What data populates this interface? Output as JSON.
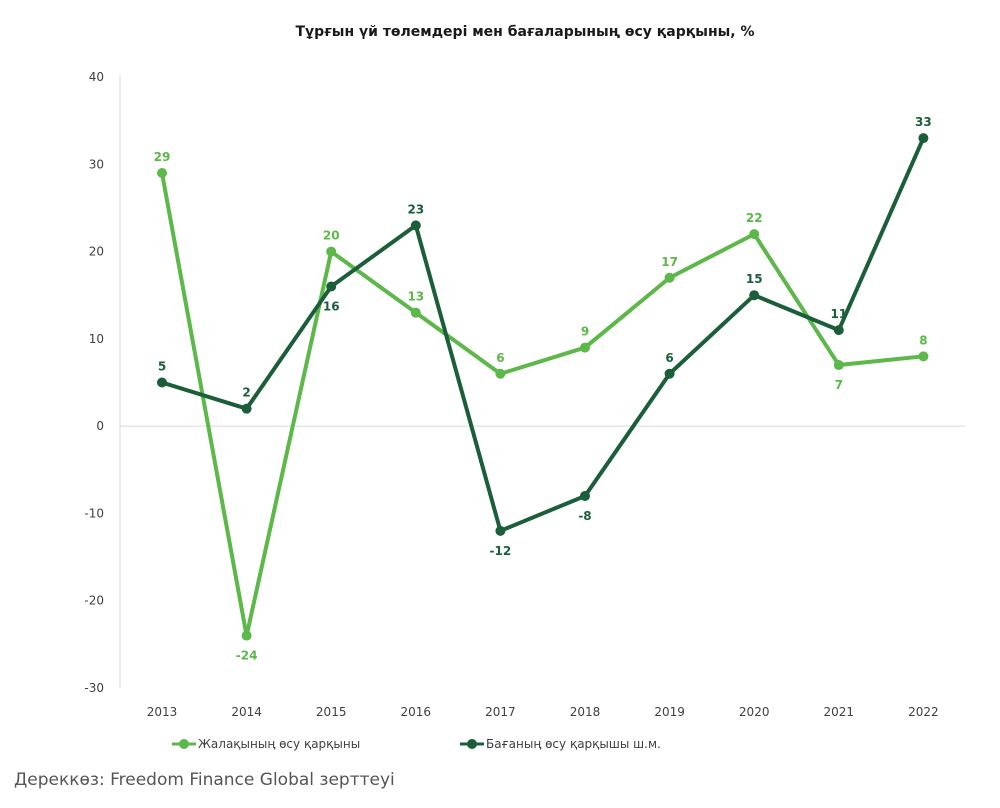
{
  "chart_data": {
    "type": "line",
    "title": "Тұрғын үй төлемдері мен бағаларының өсу қарқыны, %",
    "categories": [
      "2013",
      "2014",
      "2015",
      "2016",
      "2017",
      "2018",
      "2019",
      "2020",
      "2021",
      "2022"
    ],
    "series": [
      {
        "name": "Жалақының өсу қарқыны",
        "color": "#5cb848",
        "values": [
          29,
          -24,
          20,
          13,
          6,
          9,
          17,
          22,
          7,
          8
        ],
        "label_side": [
          "above",
          "below",
          "above",
          "above",
          "above",
          "above",
          "above",
          "above",
          "below",
          "above"
        ]
      },
      {
        "name": "Бағаның өсу қарқышы ш.м.",
        "color": "#1b5e3a",
        "values": [
          5,
          2,
          16,
          23,
          -12,
          -8,
          6,
          15,
          11,
          33
        ],
        "label_side": [
          "above",
          "above",
          "below",
          "above",
          "below",
          "below",
          "above",
          "above",
          "above",
          "above"
        ]
      }
    ],
    "y_ticks": [
      "40",
      "30",
      "20",
      "10",
      "0",
      "-10",
      "-20",
      "-30"
    ],
    "ylim": [
      -30,
      40
    ],
    "grid": false,
    "legend_position": "bottom-left"
  },
  "source": "Дереккөз: Freedom Finance Global зерттеуі"
}
